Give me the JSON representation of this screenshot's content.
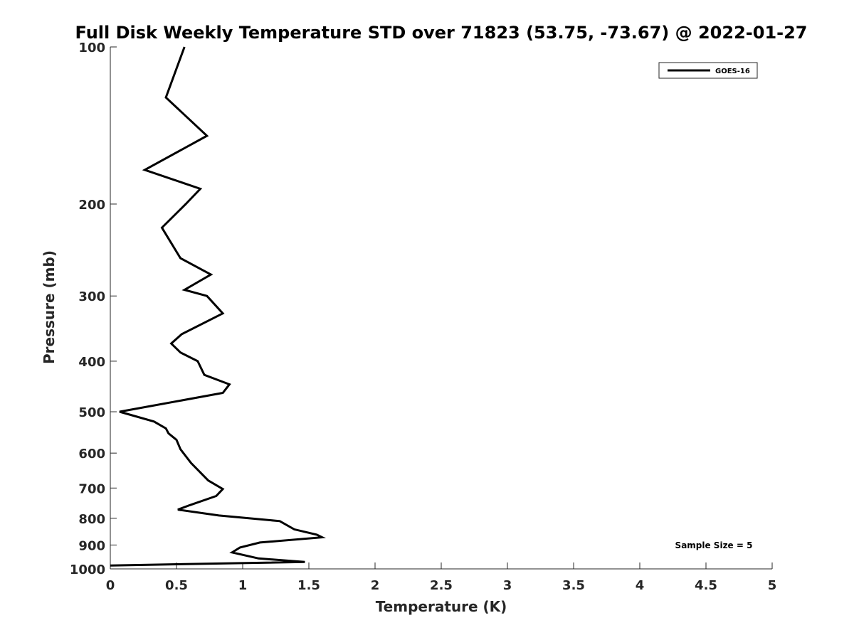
{
  "chart_data": {
    "type": "line",
    "title": "Full Disk Weekly Temperature STD over 71823 (53.75, -73.67) @ 2022-01-27",
    "xlabel": "Temperature (K)",
    "ylabel": "Pressure (mb)",
    "xlim": [
      0,
      5
    ],
    "ylim": [
      100,
      1000
    ],
    "y_scale": "log",
    "y_reversed": true,
    "x_ticks": [
      0,
      0.5,
      1,
      1.5,
      2,
      2.5,
      3,
      3.5,
      4,
      4.5,
      5
    ],
    "x_tick_labels": [
      "0",
      "0.5",
      "1",
      "1.5",
      "2",
      "2.5",
      "3",
      "3.5",
      "4",
      "4.5",
      "5"
    ],
    "y_ticks": [
      100,
      200,
      300,
      400,
      500,
      600,
      700,
      800,
      900,
      1000
    ],
    "y_tick_labels": [
      "100",
      "200",
      "300",
      "400",
      "500",
      "600",
      "700",
      "800",
      "900",
      "1000"
    ],
    "grid": false,
    "legend_position": "top-right",
    "annotation": "Sample Size = 5",
    "series": [
      {
        "name": "GOES-16",
        "color": "#000000",
        "x": [
          0.56,
          0.42,
          0.73,
          0.26,
          0.68,
          0.57,
          0.39,
          0.53,
          0.76,
          0.56,
          0.73,
          0.85,
          0.54,
          0.46,
          0.53,
          0.66,
          0.71,
          0.9,
          0.85,
          0.07,
          0.33,
          0.42,
          0.44,
          0.5,
          0.53,
          0.61,
          0.74,
          0.85,
          0.8,
          0.6,
          0.51,
          0.82,
          1.28,
          1.39,
          1.56,
          1.6,
          1.13,
          0.98,
          0.92,
          1.12,
          1.47,
          0.0
        ],
        "y": [
          100,
          125,
          148,
          172,
          187,
          200,
          222,
          254,
          273,
          292,
          300,
          324,
          355,
          370,
          385,
          400,
          425,
          443,
          460,
          500,
          522,
          538,
          550,
          566,
          590,
          627,
          677,
          703,
          725,
          755,
          770,
          790,
          810,
          840,
          860,
          870,
          890,
          910,
          930,
          955,
          970,
          985
        ]
      }
    ]
  }
}
